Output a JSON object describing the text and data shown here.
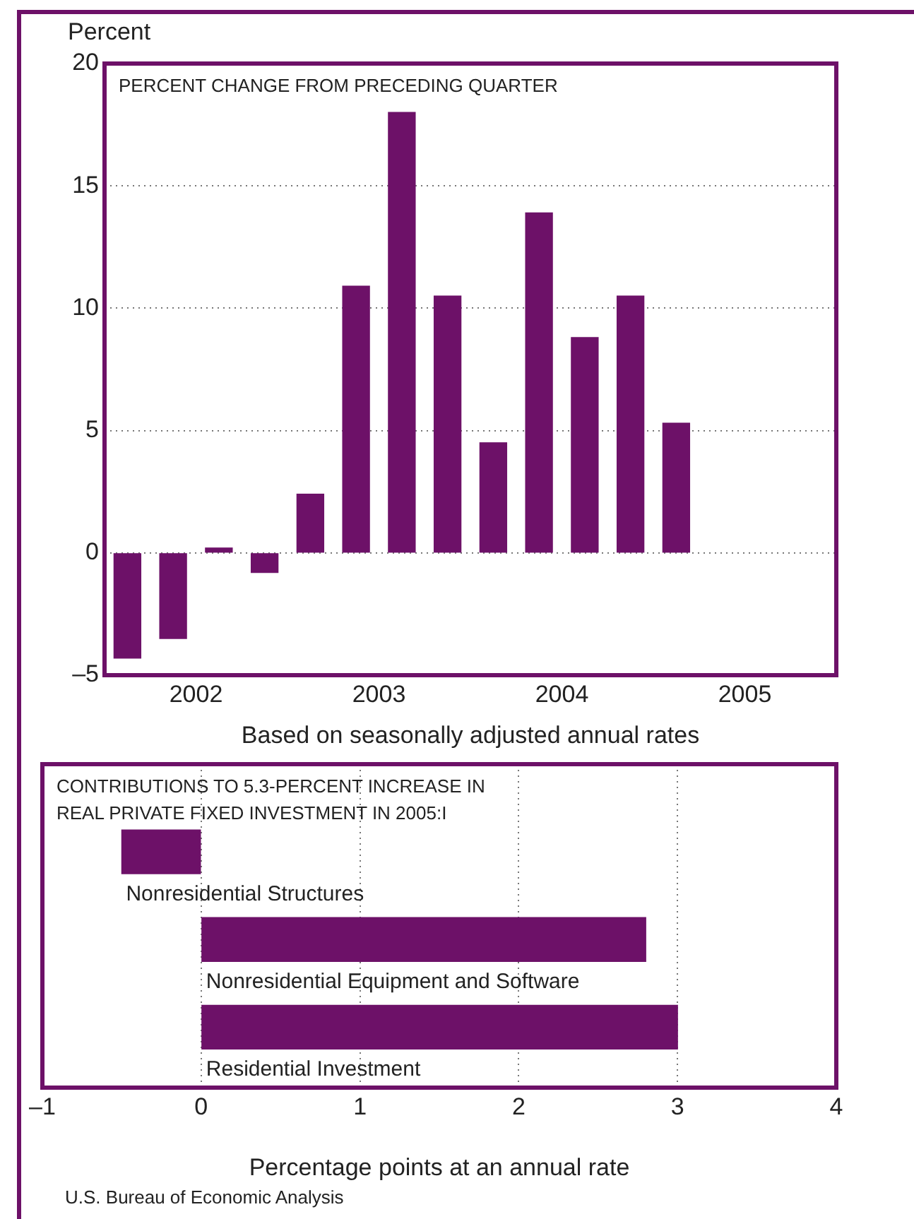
{
  "chart_data": [
    {
      "type": "bar",
      "title": "PERCENT CHANGE FROM PRECEDING QUARTER",
      "ylabel": "Percent",
      "xlabel": "Based on seasonally adjusted annual rates",
      "x": [
        2002.125,
        2002.375,
        2002.625,
        2002.875,
        2003.125,
        2003.375,
        2003.625,
        2003.875,
        2004.125,
        2004.375,
        2004.625,
        2004.875,
        2005.125
      ],
      "values": [
        -4.3,
        -3.5,
        0.2,
        -0.8,
        2.4,
        10.9,
        18.0,
        10.5,
        4.5,
        13.9,
        8.8,
        10.5,
        5.3
      ],
      "color": "#6d1168",
      "xlim": [
        2002,
        2006
      ],
      "xticks": [
        {
          "value": 2002.5,
          "label": "2002"
        },
        {
          "value": 2003.5,
          "label": "2003"
        },
        {
          "value": 2004.5,
          "label": "2004"
        },
        {
          "value": 2005.5,
          "label": "2005"
        }
      ],
      "ylim": [
        -5,
        20
      ],
      "yticks": [
        {
          "value": -5,
          "label": "–5"
        },
        0,
        5,
        10,
        15,
        20
      ],
      "grid": "y"
    },
    {
      "type": "bar",
      "orientation": "horizontal",
      "title": "CONTRIBUTIONS TO 5.3-PERCENT INCREASE IN\nREAL PRIVATE FIXED INVESTMENT IN 2005:I",
      "xlabel": "Percentage points at an annual rate",
      "categories": [
        "Nonresidential Structures",
        "Nonresidential Equipment and Software",
        "Residential Investment"
      ],
      "values": [
        -0.5,
        2.8,
        3.0
      ],
      "color": "#6d1168",
      "xlim": [
        -1,
        4
      ],
      "xticks": [
        {
          "value": -1,
          "label": "–1"
        },
        0,
        1,
        2,
        3,
        4
      ],
      "grid": "x",
      "annotations": [
        "U.S. Bureau of Economic Analysis"
      ]
    }
  ]
}
